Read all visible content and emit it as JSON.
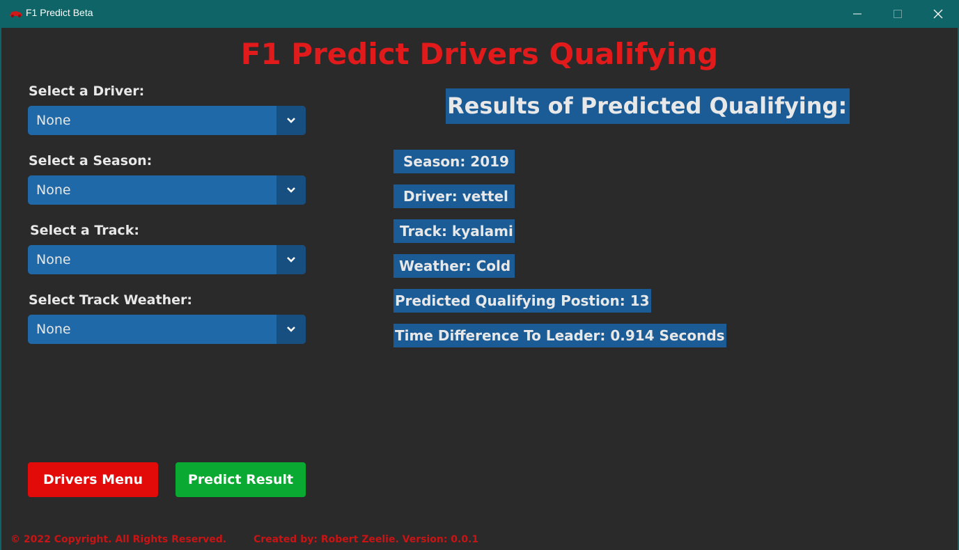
{
  "window": {
    "title": "F1 Predict Beta",
    "icon": "f1-car-icon",
    "controls": [
      "minimize-icon",
      "maximize-icon",
      "close-icon"
    ]
  },
  "main_title": "F1 Predict Drivers Qualifying",
  "form": {
    "driver": {
      "label": "Select a Driver:",
      "value": "None"
    },
    "season": {
      "label": "Select a Season:",
      "value": "None"
    },
    "track": {
      "label": "Select a Track:",
      "value": "None"
    },
    "weather": {
      "label": "Select Track Weather:",
      "value": "None"
    }
  },
  "results": {
    "title": "Results of Predicted Qualifying:",
    "season": "Season: 2019",
    "driver": "Driver: vettel",
    "track": "Track: kyalami",
    "weather": "Weather: Cold",
    "position": "Predicted Qualifying Postion: 13",
    "time_diff": "Time Difference To Leader: 0.914 Seconds"
  },
  "buttons": {
    "drivers_menu": "Drivers Menu",
    "predict": "Predict Result"
  },
  "footer": {
    "copyright": "© 2022 Copyright. All Rights Reserved.",
    "credits": "Created by: Robert Zeelie.  Version: 0.0.1"
  },
  "colors": {
    "titlebar": "#0e6466",
    "background": "#2a2a2b",
    "accent_red": "#e11b1b",
    "dropdown": "#2069a8",
    "result_bg": "#1b5c96",
    "drivers_menu_button": "#e30a0a",
    "predict_button": "#0aaa32"
  }
}
